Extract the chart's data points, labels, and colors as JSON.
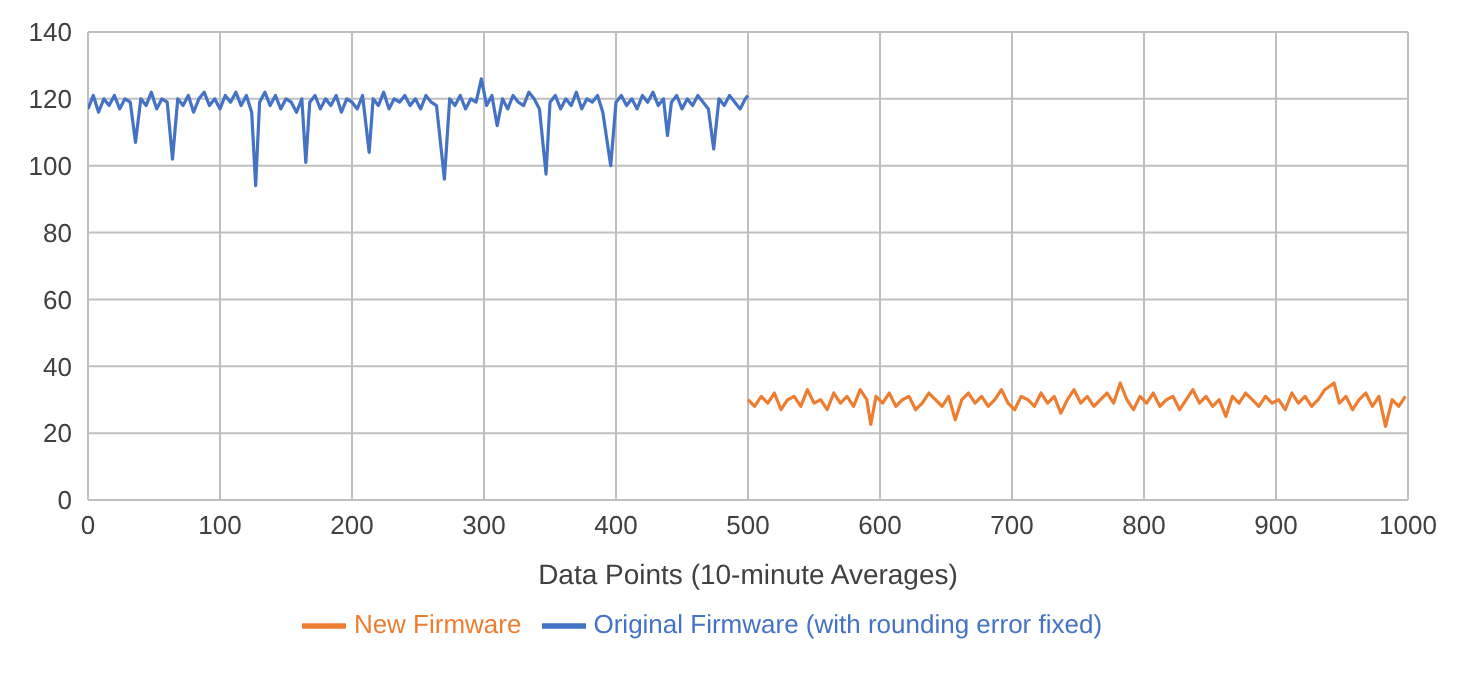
{
  "chart_data": {
    "type": "line",
    "xlabel": "Data Points (10-minute Averages)",
    "xlim": [
      0,
      1000
    ],
    "xticks": [
      0,
      100,
      200,
      300,
      400,
      500,
      600,
      700,
      800,
      900,
      1000
    ],
    "ylim": [
      0,
      140
    ],
    "yticks": [
      0,
      20,
      40,
      60,
      80,
      100,
      120,
      140
    ],
    "grid": true,
    "legend": "bottom",
    "marker": "none",
    "line_style": "solid",
    "series": [
      {
        "name": "Original Firmware (with rounding error fixed)",
        "color": "#4472c4",
        "x": [
          0,
          4,
          8,
          12,
          16,
          20,
          24,
          28,
          32,
          36,
          40,
          44,
          48,
          52,
          56,
          60,
          64,
          68,
          72,
          76,
          80,
          84,
          88,
          92,
          96,
          100,
          104,
          108,
          112,
          116,
          120,
          124,
          127,
          130,
          134,
          138,
          142,
          146,
          150,
          154,
          158,
          162,
          165,
          168,
          172,
          176,
          180,
          184,
          188,
          192,
          196,
          200,
          204,
          208,
          213,
          216,
          220,
          224,
          228,
          232,
          236,
          240,
          244,
          248,
          252,
          256,
          260,
          264,
          270,
          274,
          278,
          282,
          286,
          290,
          294,
          298,
          302,
          306,
          310,
          314,
          318,
          322,
          326,
          330,
          334,
          338,
          342,
          347,
          350,
          354,
          358,
          362,
          366,
          370,
          374,
          378,
          382,
          386,
          390,
          396,
          400,
          404,
          408,
          412,
          416,
          420,
          424,
          428,
          432,
          436,
          439,
          442,
          446,
          450,
          454,
          458,
          462,
          466,
          470,
          474,
          478,
          482,
          486,
          490,
          494,
          498,
          500
        ],
        "values": [
          117,
          121,
          116,
          120,
          118,
          121,
          117,
          120,
          119,
          107,
          120,
          118,
          122,
          117,
          120,
          119,
          102,
          120,
          118,
          121,
          116,
          120,
          122,
          118,
          120,
          117,
          121,
          119,
          122,
          118,
          121,
          116,
          94,
          119,
          122,
          118,
          121,
          117,
          120,
          119,
          116,
          120,
          101,
          119,
          121,
          117,
          120,
          118,
          121,
          116,
          120,
          119,
          117,
          121,
          104,
          120,
          118,
          122,
          117,
          120,
          119,
          121,
          118,
          120,
          117,
          121,
          119,
          118,
          96,
          120,
          118,
          121,
          117,
          120,
          119,
          126,
          118,
          121,
          112,
          120,
          117,
          121,
          119,
          118,
          122,
          120,
          117,
          97.5,
          119,
          121,
          117,
          120,
          118,
          122,
          117,
          120,
          119,
          121,
          116,
          100,
          119,
          121,
          118,
          120,
          117,
          121,
          119,
          122,
          118,
          120,
          109,
          119,
          121,
          117,
          120,
          118,
          121,
          119,
          117,
          105,
          120,
          118,
          121,
          119,
          117,
          120,
          121
        ]
      },
      {
        "name": "New Firmware",
        "color": "#ed7d31",
        "x": [
          500,
          505,
          510,
          515,
          520,
          525,
          530,
          535,
          540,
          545,
          550,
          555,
          560,
          565,
          570,
          575,
          580,
          585,
          590,
          593,
          597,
          602,
          607,
          612,
          617,
          622,
          627,
          632,
          637,
          642,
          647,
          652,
          657,
          662,
          667,
          672,
          677,
          682,
          687,
          692,
          697,
          702,
          707,
          712,
          717,
          722,
          727,
          732,
          737,
          742,
          747,
          752,
          757,
          762,
          767,
          772,
          777,
          782,
          787,
          792,
          797,
          802,
          807,
          812,
          817,
          822,
          827,
          832,
          837,
          842,
          847,
          852,
          857,
          862,
          867,
          872,
          877,
          882,
          887,
          892,
          897,
          902,
          907,
          912,
          917,
          922,
          927,
          932,
          937,
          944,
          948,
          953,
          958,
          963,
          968,
          973,
          978,
          983,
          988,
          993,
          998
        ],
        "values": [
          30,
          28,
          31,
          29,
          32,
          27,
          30,
          31,
          28,
          33,
          29,
          30,
          27,
          32,
          29,
          31,
          28,
          33,
          30,
          22.6,
          31,
          29,
          32,
          28,
          30,
          31,
          27,
          29,
          32,
          30,
          28,
          31,
          24,
          30,
          32,
          29,
          31,
          28,
          30,
          33,
          29,
          27,
          31,
          30,
          28,
          32,
          29,
          31,
          26,
          30,
          33,
          29,
          31,
          28,
          30,
          32,
          29,
          35,
          30,
          27,
          31,
          29,
          32,
          28,
          30,
          31,
          27,
          30,
          33,
          29,
          31,
          28,
          30,
          25,
          31,
          29,
          32,
          30,
          28,
          31,
          29,
          30,
          27,
          32,
          29,
          31,
          28,
          30,
          33,
          35,
          29,
          31,
          27,
          30,
          32,
          28,
          31,
          22,
          30,
          28,
          31
        ]
      }
    ]
  }
}
